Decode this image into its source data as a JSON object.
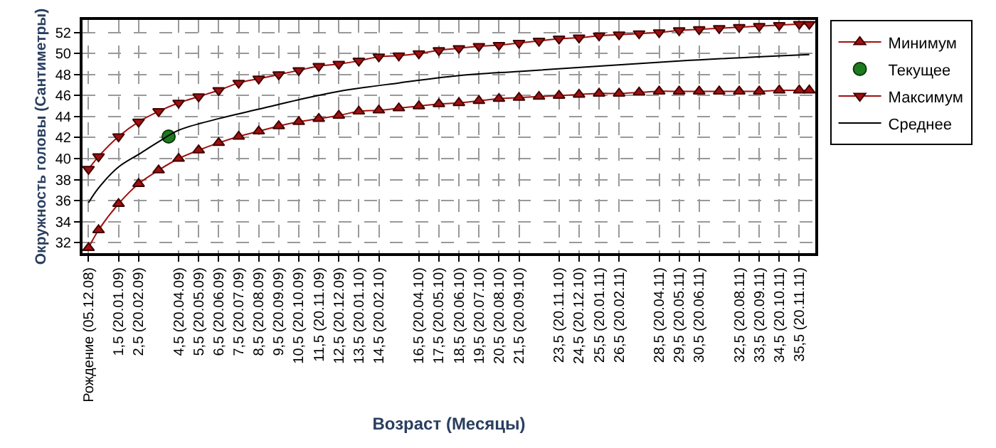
{
  "chart_data": {
    "type": "line",
    "xlabel": "Возраст (Месяцы)",
    "ylabel": "Окружность головы (Сантиметры)",
    "categories": [
      "Рождение (05.12.08)",
      null,
      null,
      "1,5 (20.01.09)",
      null,
      "2,5 (20.02.09)",
      null,
      null,
      null,
      "4,5 (20.04.09)",
      null,
      "5,5 (20.05.09)",
      null,
      "6,5 (20.06.09)",
      null,
      "7,5 (20.07.09)",
      null,
      "8,5 (20.08.09)",
      null,
      "9,5 (20.09.09)",
      null,
      "10,5 (20.10.09)",
      null,
      "11,5 (20.11.09)",
      null,
      "12,5 (20.12.09)",
      null,
      "13,5 (20.01.10)",
      null,
      "14,5 (20.02.10)",
      null,
      null,
      null,
      "16,5 (20.04.10)",
      null,
      "17,5 (20.05.10)",
      null,
      "18,5 (20.06.10)",
      null,
      "19,5 (20.07.10)",
      null,
      "20,5 (20.08.10)",
      null,
      "21,5 (20.09.10)",
      null,
      null,
      null,
      "23,5 (20.11.10)",
      null,
      "24,5 (20.12.10)",
      null,
      "25,5 (20.01.11)",
      null,
      "26,5 (20.02.11)",
      null,
      null,
      null,
      "28,5 (20.04.11)",
      null,
      "29,5 (20.05.11)",
      null,
      "30,5 (20.06.11)",
      null,
      null,
      null,
      "32,5 (20.08.11)",
      null,
      "33,5 (20.09.11)",
      null,
      "34,5 (20.10.11)",
      null,
      "35,5 (20.11.11)",
      null
    ],
    "ylim": [
      31,
      53.2
    ],
    "yticks": [
      32,
      34,
      36,
      38,
      40,
      42,
      44,
      46,
      48,
      50,
      52
    ],
    "grid": true,
    "legend": "right",
    "series": [
      {
        "name": "Минимум",
        "color": "#a01010",
        "marker": "triangle",
        "values": [
          31.5,
          33.2,
          null,
          35.7,
          null,
          37.6,
          null,
          38.9,
          null,
          40.0,
          null,
          40.8,
          null,
          41.5,
          null,
          42.1,
          null,
          42.6,
          null,
          43.1,
          null,
          43.5,
          null,
          43.8,
          null,
          44.1,
          null,
          44.5,
          null,
          44.6,
          null,
          44.8,
          null,
          45.0,
          null,
          45.2,
          null,
          45.3,
          null,
          45.5,
          null,
          45.7,
          null,
          45.8,
          null,
          45.9,
          null,
          46.0,
          null,
          46.1,
          null,
          46.2,
          null,
          46.2,
          null,
          46.3,
          null,
          46.4,
          null,
          46.4,
          null,
          46.4,
          null,
          46.4,
          null,
          46.4,
          null,
          46.4,
          null,
          46.5,
          null,
          46.5,
          46.5
        ]
      },
      {
        "name": "Текущее",
        "color": "#1e7a1e",
        "marker": "circle",
        "values": [
          null,
          null,
          null,
          null,
          null,
          null,
          null,
          null,
          42.1,
          null,
          null,
          null,
          null,
          null,
          null,
          null,
          null,
          null,
          null,
          null,
          null,
          null,
          null,
          null,
          null,
          null,
          null,
          null,
          null,
          null,
          null,
          null,
          null,
          null,
          null,
          null,
          null,
          null,
          null,
          null,
          null,
          null,
          null,
          null,
          null,
          null,
          null,
          null,
          null,
          null,
          null,
          null,
          null,
          null,
          null,
          null,
          null,
          null,
          null,
          null,
          null,
          null,
          null,
          null,
          null,
          null,
          null,
          null,
          null,
          null,
          null,
          null,
          null
        ]
      },
      {
        "name": "Максимум",
        "color": "#a01010",
        "marker": "triangle-down",
        "values": [
          39.0,
          40.2,
          null,
          42.1,
          null,
          43.5,
          null,
          44.5,
          null,
          45.3,
          null,
          45.9,
          null,
          46.5,
          null,
          47.2,
          null,
          47.6,
          null,
          48.0,
          null,
          48.4,
          null,
          48.8,
          null,
          49.0,
          null,
          49.3,
          null,
          49.7,
          null,
          49.8,
          null,
          50.0,
          null,
          50.3,
          null,
          50.5,
          null,
          50.7,
          null,
          50.8,
          null,
          51.0,
          null,
          51.2,
          null,
          51.4,
          null,
          51.5,
          null,
          51.7,
          null,
          51.8,
          null,
          51.9,
          null,
          52.0,
          null,
          52.2,
          null,
          52.3,
          null,
          52.4,
          null,
          52.5,
          null,
          52.6,
          null,
          52.7,
          null,
          52.8,
          52.8
        ]
      },
      {
        "name": "Среднее",
        "color": "#000000",
        "marker": "none",
        "values": [
          35.8,
          37.2,
          null,
          39.2,
          null,
          40.4,
          null,
          41.6,
          null,
          42.7,
          null,
          null,
          null,
          43.8,
          null,
          null,
          null,
          44.7,
          null,
          null,
          null,
          45.6,
          null,
          null,
          null,
          46.4,
          null,
          null,
          null,
          null,
          null,
          47.2,
          null,
          null,
          null,
          null,
          null,
          47.9,
          null,
          null,
          null,
          null,
          null,
          48.3,
          null,
          null,
          null,
          null,
          null,
          null,
          null,
          48.8,
          null,
          null,
          null,
          null,
          null,
          null,
          null,
          null,
          null,
          49.4,
          null,
          null,
          null,
          null,
          null,
          null,
          null,
          null,
          null,
          null,
          49.9
        ]
      }
    ]
  }
}
